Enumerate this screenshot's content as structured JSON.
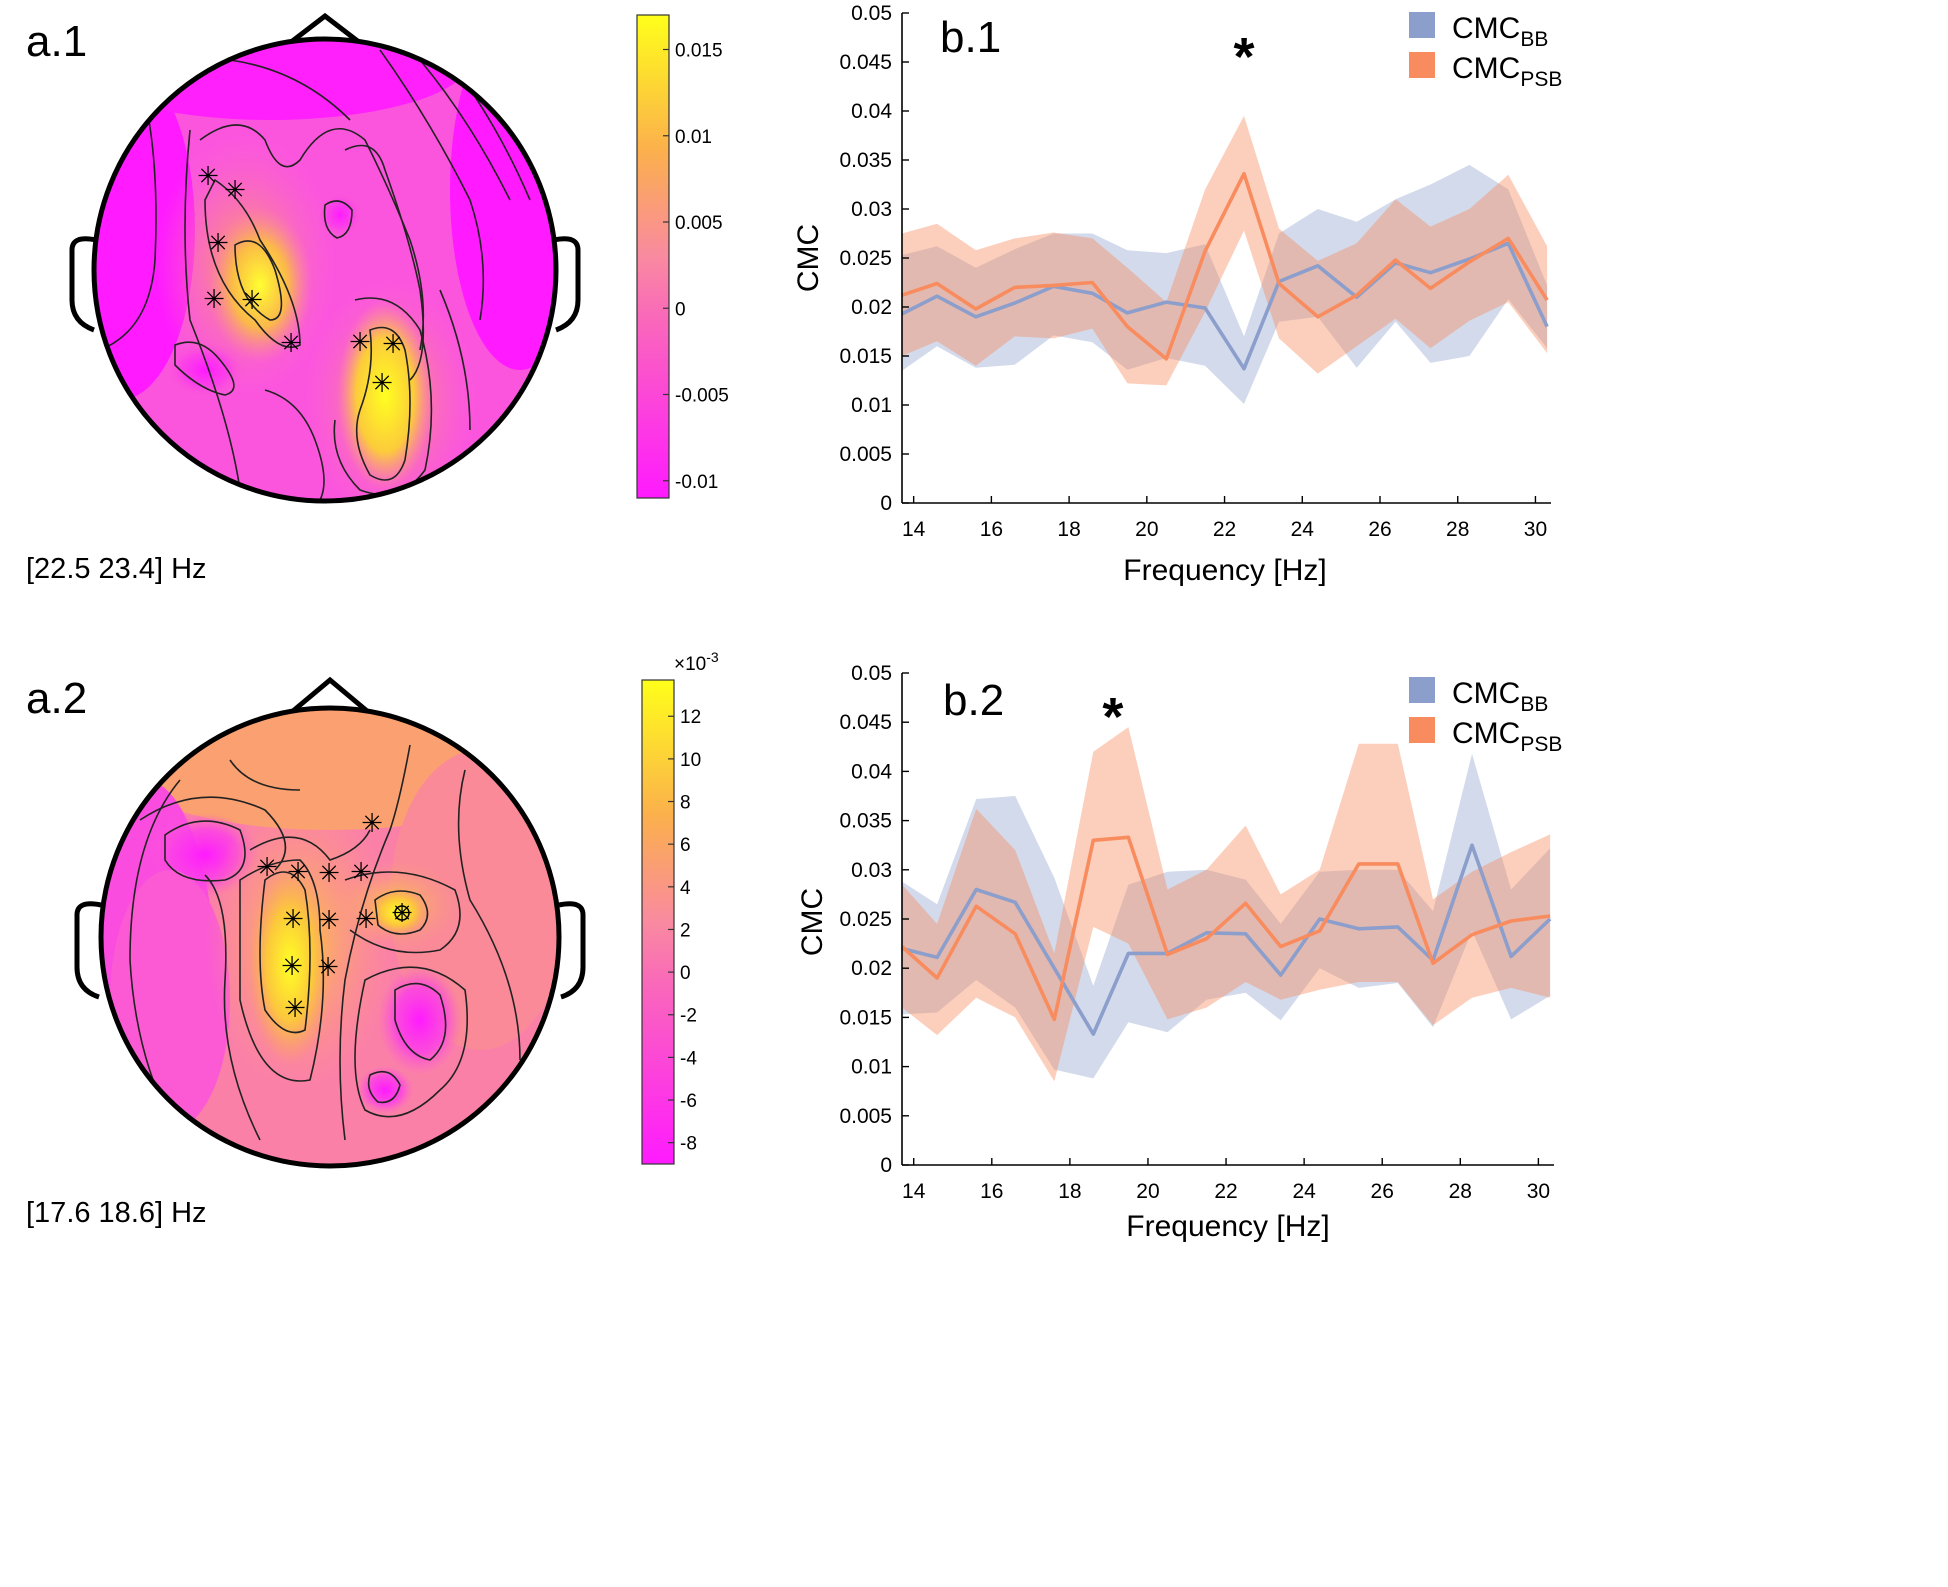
{
  "colors": {
    "bb": "#8c9ecb",
    "psb": "#f88c5f",
    "colormap_low": "#ff1aff",
    "colormap_mid": "#f98aa0",
    "colormap_high": "#ffff1a"
  },
  "panels": {
    "a1": {
      "label": "a.1",
      "band_text": "[22.5 23.4] Hz",
      "colorbar": {
        "ticks": [
          "0.015",
          "0.01",
          "0.005",
          "0",
          "-0.005",
          "-0.01"
        ],
        "values": [
          0.015,
          0.01,
          0.005,
          0,
          -0.005,
          -0.01
        ],
        "min": -0.011,
        "max": 0.017,
        "exponent_label": ""
      }
    },
    "a2": {
      "label": "a.2",
      "band_text": "[17.6 18.6] Hz",
      "colorbar": {
        "ticks": [
          "12",
          "10",
          "8",
          "6",
          "4",
          "2",
          "0",
          "-2",
          "-4",
          "-6",
          "-8"
        ],
        "values": [
          12,
          10,
          8,
          6,
          4,
          2,
          0,
          -2,
          -4,
          -6,
          -8
        ],
        "min": -9,
        "max": 13.7,
        "exponent_label": "×10",
        "exponent_sup": "-3"
      }
    },
    "b1": {
      "label": "b.1",
      "significance": "*"
    },
    "b2": {
      "label": "b.2",
      "significance": "*"
    }
  },
  "legend": {
    "bb_main": "CMC",
    "bb_sub": "BB",
    "psb_main": "CMC",
    "psb_sub": "PSB"
  },
  "chart_data": [
    {
      "id": "b1",
      "type": "line",
      "xlabel": "Frequency [Hz]",
      "ylabel": "CMC",
      "xlim": [
        13.7,
        30.4
      ],
      "ylim": [
        0,
        0.05
      ],
      "xticks": [
        14,
        16,
        18,
        20,
        22,
        24,
        26,
        28,
        30
      ],
      "yticks": [
        0,
        0.005,
        0.01,
        0.015,
        0.02,
        0.025,
        0.03,
        0.035,
        0.04,
        0.045,
        0.05
      ],
      "ytick_labels": [
        "0",
        "0.005",
        "0.01",
        "0.015",
        "0.02",
        "0.025",
        "0.03",
        "0.035",
        "0.04",
        "0.045",
        "0.05"
      ],
      "significance_x": 22.5,
      "x": [
        13.7,
        14.6,
        15.6,
        16.6,
        17.6,
        18.6,
        19.5,
        20.5,
        21.5,
        22.5,
        23.4,
        24.4,
        25.4,
        26.4,
        27.3,
        28.3,
        29.3,
        30.3
      ],
      "series": [
        {
          "name": "CMC_BB",
          "values": [
            0.0193,
            0.0211,
            0.019,
            0.0204,
            0.0221,
            0.0214,
            0.0194,
            0.0205,
            0.0199,
            0.0137,
            0.0226,
            0.0242,
            0.021,
            0.0245,
            0.0235,
            0.0249,
            0.0265,
            0.018
          ],
          "upper": [
            0.0253,
            0.0262,
            0.024,
            0.0259,
            0.0275,
            0.0275,
            0.0258,
            0.0255,
            0.0264,
            0.017,
            0.0275,
            0.03,
            0.0287,
            0.031,
            0.0325,
            0.0345,
            0.032,
            0.0222
          ],
          "lower": [
            0.0135,
            0.016,
            0.0138,
            0.0141,
            0.0171,
            0.0164,
            0.0136,
            0.0148,
            0.014,
            0.0101,
            0.0185,
            0.019,
            0.0138,
            0.0185,
            0.0143,
            0.015,
            0.0208,
            0.0158
          ]
        },
        {
          "name": "CMC_PSB",
          "values": [
            0.0212,
            0.0224,
            0.0198,
            0.022,
            0.0222,
            0.0225,
            0.018,
            0.0147,
            0.0257,
            0.0336,
            0.0224,
            0.019,
            0.0212,
            0.0248,
            0.0219,
            0.0246,
            0.027,
            0.0207
          ],
          "upper": [
            0.0275,
            0.0285,
            0.0258,
            0.027,
            0.0276,
            0.027,
            0.024,
            0.0205,
            0.032,
            0.0395,
            0.028,
            0.0247,
            0.0265,
            0.031,
            0.0282,
            0.03,
            0.0335,
            0.0262
          ],
          "lower": [
            0.015,
            0.0165,
            0.014,
            0.017,
            0.0168,
            0.0178,
            0.0122,
            0.012,
            0.0195,
            0.0278,
            0.0168,
            0.0132,
            0.016,
            0.0188,
            0.0158,
            0.0186,
            0.0205,
            0.0153
          ]
        }
      ]
    },
    {
      "id": "b2",
      "type": "line",
      "xlabel": "Frequency [Hz]",
      "ylabel": "CMC",
      "xlim": [
        13.7,
        30.4
      ],
      "ylim": [
        0,
        0.05
      ],
      "xticks": [
        14,
        16,
        18,
        20,
        22,
        24,
        26,
        28,
        30
      ],
      "yticks": [
        0,
        0.005,
        0.01,
        0.015,
        0.02,
        0.025,
        0.03,
        0.035,
        0.04,
        0.045,
        0.05
      ],
      "ytick_labels": [
        "0",
        "0.005",
        "0.01",
        "0.015",
        "0.02",
        "0.025",
        "0.03",
        "0.035",
        "0.04",
        "0.045",
        "0.05"
      ],
      "significance_x": 19.1,
      "x": [
        13.7,
        14.6,
        15.6,
        16.6,
        17.6,
        18.6,
        19.5,
        20.5,
        21.5,
        22.5,
        23.4,
        24.4,
        25.4,
        26.4,
        27.3,
        28.3,
        29.3,
        30.3
      ],
      "series": [
        {
          "name": "CMC_BB",
          "values": [
            0.022,
            0.0211,
            0.028,
            0.0267,
            0.02,
            0.0133,
            0.0215,
            0.0215,
            0.0236,
            0.0235,
            0.0193,
            0.025,
            0.024,
            0.0242,
            0.0208,
            0.0325,
            0.0212,
            0.025
          ],
          "upper": [
            0.0288,
            0.0265,
            0.0372,
            0.0375,
            0.0292,
            0.0182,
            0.0285,
            0.0298,
            0.03,
            0.029,
            0.0245,
            0.0298,
            0.03,
            0.03,
            0.0258,
            0.0418,
            0.028,
            0.0322
          ],
          "lower": [
            0.0153,
            0.0155,
            0.0188,
            0.016,
            0.0097,
            0.0088,
            0.0145,
            0.0135,
            0.0168,
            0.0175,
            0.0147,
            0.02,
            0.018,
            0.0185,
            0.014,
            0.0238,
            0.0148,
            0.0172
          ]
        },
        {
          "name": "CMC_PSB",
          "values": [
            0.0222,
            0.019,
            0.0263,
            0.0235,
            0.0148,
            0.033,
            0.0333,
            0.0214,
            0.023,
            0.0266,
            0.0222,
            0.0238,
            0.0306,
            0.0306,
            0.0205,
            0.0234,
            0.0248,
            0.0253
          ],
          "upper": [
            0.0285,
            0.0245,
            0.0362,
            0.032,
            0.0215,
            0.042,
            0.0445,
            0.028,
            0.03,
            0.0345,
            0.0275,
            0.03,
            0.0428,
            0.0428,
            0.027,
            0.0298,
            0.0318,
            0.0336
          ],
          "lower": [
            0.016,
            0.0132,
            0.017,
            0.015,
            0.0085,
            0.0242,
            0.0225,
            0.0148,
            0.016,
            0.0186,
            0.0168,
            0.0178,
            0.0186,
            0.0186,
            0.0142,
            0.017,
            0.018,
            0.017
          ]
        }
      ]
    }
  ]
}
